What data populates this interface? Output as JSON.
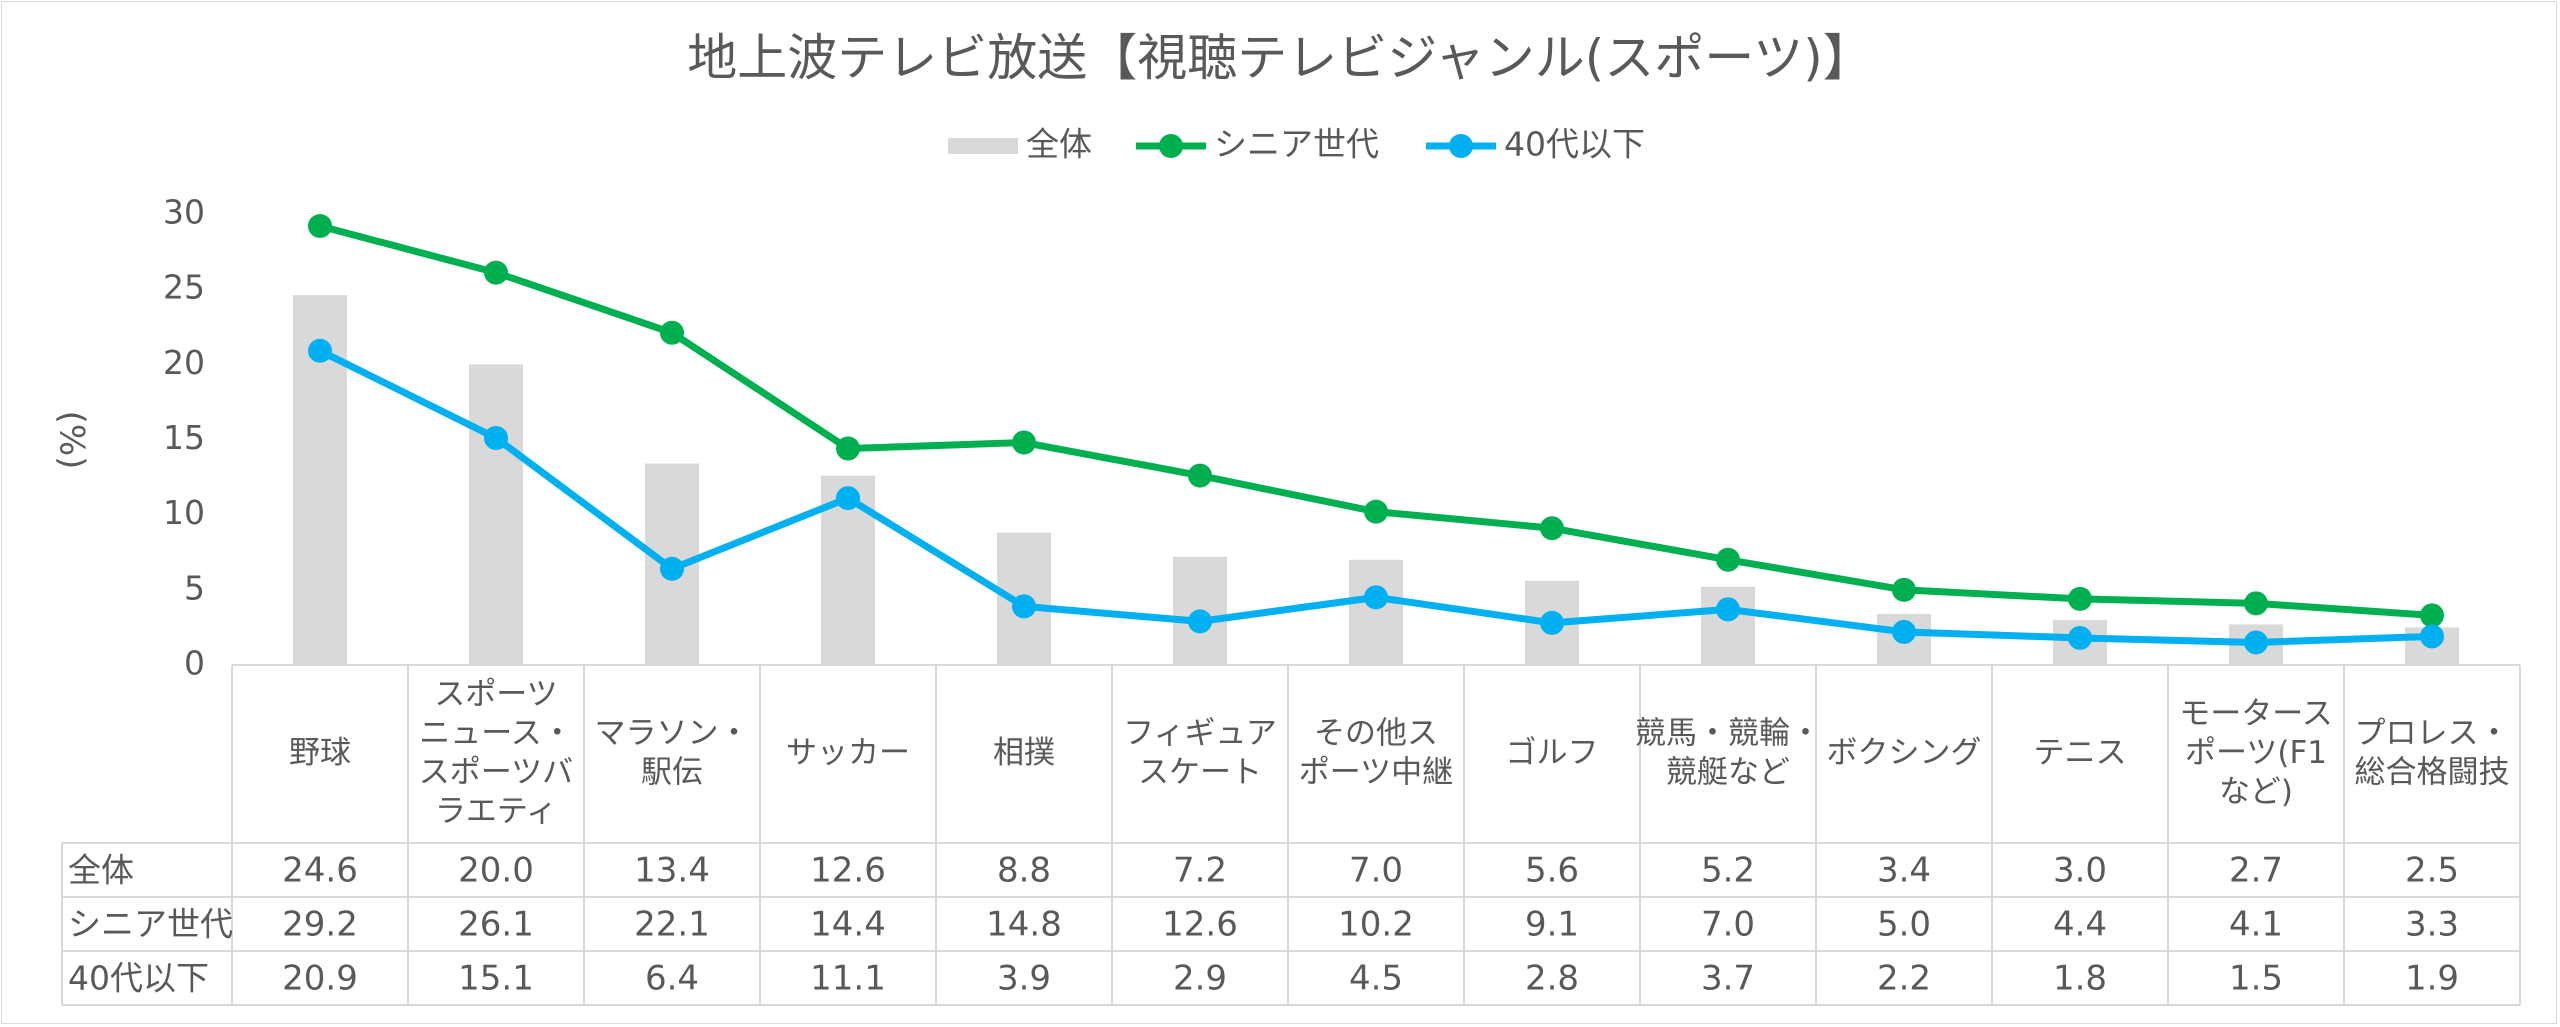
{
  "chart_data": {
    "type": "bar",
    "title": "地上波テレビ放送【視聴テレビジャンル(スポーツ)】",
    "ylabel": "(%)",
    "ylim": [
      0,
      30
    ],
    "yticks": [
      0,
      5,
      10,
      15,
      20,
      25,
      30
    ],
    "grid": false,
    "legend_position": "top",
    "categories": [
      [
        "野球"
      ],
      [
        "スポーツ",
        "ニュース・",
        "スポーツバ",
        "ラエティ"
      ],
      [
        "マラソン・",
        "駅伝"
      ],
      [
        "サッカー"
      ],
      [
        "相撲"
      ],
      [
        "フィギュア",
        "スケート"
      ],
      [
        "その他ス",
        "ポーツ中継"
      ],
      [
        "ゴルフ"
      ],
      [
        "競馬・競輪・",
        "競艇など"
      ],
      [
        "ボクシング"
      ],
      [
        "テニス"
      ],
      [
        "モータース",
        "ポーツ(F1",
        "など)"
      ],
      [
        "プロレス・",
        "総合格闘技"
      ]
    ],
    "series": [
      {
        "name": "全体",
        "kind": "bar",
        "color": "#d9d9d9",
        "values": [
          24.6,
          20.0,
          13.4,
          12.6,
          8.8,
          7.2,
          7.0,
          5.6,
          5.2,
          3.4,
          3.0,
          2.7,
          2.5
        ],
        "labels": [
          "24.6",
          "20.0",
          "13.4",
          "12.6",
          "8.8",
          "7.2",
          "7.0",
          "5.6",
          "5.2",
          "3.4",
          "3.0",
          "2.7",
          "2.5"
        ]
      },
      {
        "name": "シニア世代",
        "kind": "line",
        "color": "#00b050",
        "values": [
          29.2,
          26.1,
          22.1,
          14.4,
          14.8,
          12.6,
          10.2,
          9.1,
          7.0,
          5.0,
          4.4,
          4.1,
          3.3
        ],
        "labels": [
          "29.2",
          "26.1",
          "22.1",
          "14.4",
          "14.8",
          "12.6",
          "10.2",
          "9.1",
          "7.0",
          "5.0",
          "4.4",
          "4.1",
          "3.3"
        ]
      },
      {
        "name": "40代以下",
        "kind": "line",
        "color": "#00b0f0",
        "values": [
          20.9,
          15.1,
          6.4,
          11.1,
          3.9,
          2.9,
          4.5,
          2.8,
          3.7,
          2.2,
          1.8,
          1.5,
          1.9
        ],
        "labels": [
          "20.9",
          "15.1",
          "6.4",
          "11.1",
          "3.9",
          "2.9",
          "4.5",
          "2.8",
          "3.7",
          "2.2",
          "1.8",
          "1.5",
          "1.9"
        ]
      }
    ]
  }
}
